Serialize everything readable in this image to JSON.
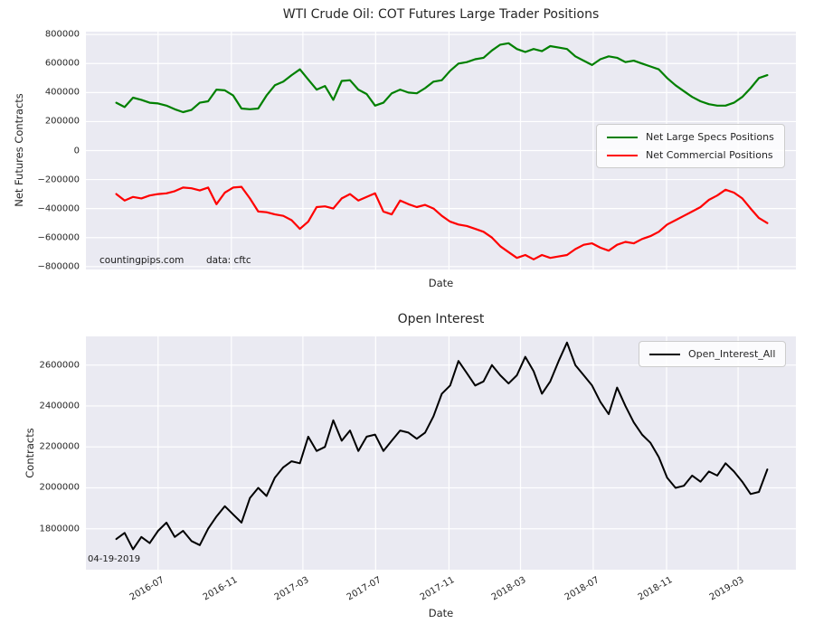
{
  "figure": {
    "top_chart": {
      "title": "WTI Crude Oil: COT Futures Large Trader Positions",
      "ylabel": "Net Futures Contracts",
      "xlabel": "Date",
      "watermark": "countingpips.com",
      "source_note": "data: cftc"
    },
    "bottom_chart": {
      "title": "Open Interest",
      "ylabel": "Contracts",
      "xlabel": "Date",
      "annotation": "04-19-2019"
    }
  },
  "colors": {
    "figure_background": "#ffffff",
    "axes_background": "#eaeaf2",
    "grid": "#ffffff",
    "text": "#262626",
    "specs_line": "#008000",
    "commercial_line": "#ff0000",
    "open_interest_line": "#000000"
  },
  "chart_data": [
    {
      "type": "line",
      "title": "WTI Crude Oil: COT Futures Large Trader Positions",
      "xlabel": "Date",
      "ylabel": "Net Futures Contracts",
      "legend_position": "center right",
      "grid": true,
      "x_domain": [
        "2016-03-02",
        "2019-06-06"
      ],
      "ylim": [
        -820000,
        820000
      ],
      "yticks": [
        {
          "value": 800000,
          "label": "800000"
        },
        {
          "value": 600000,
          "label": "600000"
        },
        {
          "value": 400000,
          "label": "400000"
        },
        {
          "value": 200000,
          "label": "200000"
        },
        {
          "value": 0,
          "label": "0"
        },
        {
          "value": -200000,
          "label": "−200000"
        },
        {
          "value": -400000,
          "label": "−400000"
        },
        {
          "value": -600000,
          "label": "−600000"
        },
        {
          "value": -800000,
          "label": "−800000"
        }
      ],
      "xticks": [
        {
          "date": "2016-07-01",
          "label": "2016-07"
        },
        {
          "date": "2016-11-01",
          "label": "2016-11"
        },
        {
          "date": "2017-03-01",
          "label": "2017-03"
        },
        {
          "date": "2017-07-01",
          "label": "2017-07"
        },
        {
          "date": "2017-11-01",
          "label": "2017-11"
        },
        {
          "date": "2018-03-01",
          "label": "2018-03"
        },
        {
          "date": "2018-07-01",
          "label": "2018-07"
        },
        {
          "date": "2018-11-01",
          "label": "2018-11"
        },
        {
          "date": "2019-03-01",
          "label": "2019-03"
        }
      ],
      "xtick_labels": false,
      "dates": [
        "2016-04-22",
        "2016-05-06",
        "2016-05-20",
        "2016-06-03",
        "2016-06-17",
        "2016-07-01",
        "2016-07-15",
        "2016-07-29",
        "2016-08-12",
        "2016-08-26",
        "2016-09-09",
        "2016-09-23",
        "2016-10-07",
        "2016-10-21",
        "2016-11-04",
        "2016-11-18",
        "2016-12-02",
        "2016-12-16",
        "2016-12-30",
        "2017-01-13",
        "2017-01-27",
        "2017-02-10",
        "2017-02-24",
        "2017-03-10",
        "2017-03-24",
        "2017-04-07",
        "2017-04-21",
        "2017-05-05",
        "2017-05-19",
        "2017-06-02",
        "2017-06-16",
        "2017-06-30",
        "2017-07-14",
        "2017-07-28",
        "2017-08-11",
        "2017-08-25",
        "2017-09-08",
        "2017-09-22",
        "2017-10-06",
        "2017-10-20",
        "2017-11-03",
        "2017-11-17",
        "2017-12-01",
        "2017-12-15",
        "2017-12-29",
        "2018-01-12",
        "2018-01-26",
        "2018-02-09",
        "2018-02-23",
        "2018-03-09",
        "2018-03-23",
        "2018-04-06",
        "2018-04-20",
        "2018-05-04",
        "2018-05-18",
        "2018-06-01",
        "2018-06-15",
        "2018-06-29",
        "2018-07-13",
        "2018-07-27",
        "2018-08-10",
        "2018-08-24",
        "2018-09-07",
        "2018-09-21",
        "2018-10-05",
        "2018-10-19",
        "2018-11-02",
        "2018-11-16",
        "2018-11-30",
        "2018-12-14",
        "2018-12-28",
        "2019-01-11",
        "2019-01-25",
        "2019-02-08",
        "2019-02-22",
        "2019-03-08",
        "2019-03-22",
        "2019-04-05",
        "2019-04-19"
      ],
      "series": [
        {
          "name": "Net Large Specs Positions",
          "color": "#008000",
          "line_width": 2.2,
          "values": [
            330000,
            300000,
            365000,
            350000,
            330000,
            325000,
            310000,
            285000,
            265000,
            280000,
            330000,
            340000,
            420000,
            415000,
            380000,
            290000,
            285000,
            290000,
            380000,
            450000,
            475000,
            520000,
            560000,
            490000,
            420000,
            445000,
            350000,
            480000,
            485000,
            420000,
            390000,
            310000,
            330000,
            395000,
            420000,
            400000,
            395000,
            430000,
            475000,
            485000,
            550000,
            600000,
            610000,
            630000,
            640000,
            690000,
            730000,
            740000,
            700000,
            680000,
            700000,
            685000,
            720000,
            710000,
            700000,
            650000,
            620000,
            590000,
            630000,
            650000,
            640000,
            610000,
            620000,
            600000,
            580000,
            560000,
            500000,
            450000,
            410000,
            370000,
            340000,
            320000,
            310000,
            310000,
            330000,
            370000,
            430000,
            500000,
            520000
          ]
        },
        {
          "name": "Net Commercial Positions",
          "color": "#ff0000",
          "line_width": 2.2,
          "values": [
            -300000,
            -345000,
            -320000,
            -330000,
            -310000,
            -300000,
            -295000,
            -280000,
            -255000,
            -260000,
            -275000,
            -255000,
            -370000,
            -290000,
            -255000,
            -250000,
            -330000,
            -420000,
            -425000,
            -440000,
            -450000,
            -480000,
            -540000,
            -490000,
            -390000,
            -385000,
            -400000,
            -330000,
            -300000,
            -345000,
            -320000,
            -295000,
            -420000,
            -440000,
            -345000,
            -370000,
            -390000,
            -375000,
            -400000,
            -450000,
            -490000,
            -510000,
            -520000,
            -540000,
            -560000,
            -600000,
            -660000,
            -700000,
            -740000,
            -720000,
            -750000,
            -720000,
            -740000,
            -730000,
            -720000,
            -680000,
            -650000,
            -640000,
            -670000,
            -690000,
            -650000,
            -630000,
            -640000,
            -610000,
            -590000,
            -560000,
            -510000,
            -480000,
            -450000,
            -420000,
            -390000,
            -340000,
            -310000,
            -270000,
            -290000,
            -330000,
            -400000,
            -465000,
            -500000
          ]
        }
      ]
    },
    {
      "type": "line",
      "title": "Open Interest",
      "xlabel": "Date",
      "ylabel": "Contracts",
      "legend_position": "upper right",
      "grid": true,
      "annotation": "04-19-2019",
      "x_domain": [
        "2016-03-02",
        "2019-06-06"
      ],
      "ylim": [
        1600000,
        2740000
      ],
      "yticks": [
        {
          "value": 2600000,
          "label": "2600000"
        },
        {
          "value": 2400000,
          "label": "2400000"
        },
        {
          "value": 2200000,
          "label": "2200000"
        },
        {
          "value": 2000000,
          "label": "2000000"
        },
        {
          "value": 1800000,
          "label": "1800000"
        }
      ],
      "xticks": [
        {
          "date": "2016-07-01",
          "label": "2016-07"
        },
        {
          "date": "2016-11-01",
          "label": "2016-11"
        },
        {
          "date": "2017-03-01",
          "label": "2017-03"
        },
        {
          "date": "2017-07-01",
          "label": "2017-07"
        },
        {
          "date": "2017-11-01",
          "label": "2017-11"
        },
        {
          "date": "2018-03-01",
          "label": "2018-03"
        },
        {
          "date": "2018-07-01",
          "label": "2018-07"
        },
        {
          "date": "2018-11-01",
          "label": "2018-11"
        },
        {
          "date": "2019-03-01",
          "label": "2019-03"
        }
      ],
      "xtick_labels": true,
      "dates": [
        "2016-04-22",
        "2016-05-06",
        "2016-05-20",
        "2016-06-03",
        "2016-06-17",
        "2016-07-01",
        "2016-07-15",
        "2016-07-29",
        "2016-08-12",
        "2016-08-26",
        "2016-09-09",
        "2016-09-23",
        "2016-10-07",
        "2016-10-21",
        "2016-11-04",
        "2016-11-18",
        "2016-12-02",
        "2016-12-16",
        "2016-12-30",
        "2017-01-13",
        "2017-01-27",
        "2017-02-10",
        "2017-02-24",
        "2017-03-10",
        "2017-03-24",
        "2017-04-07",
        "2017-04-21",
        "2017-05-05",
        "2017-05-19",
        "2017-06-02",
        "2017-06-16",
        "2017-06-30",
        "2017-07-14",
        "2017-07-28",
        "2017-08-11",
        "2017-08-25",
        "2017-09-08",
        "2017-09-22",
        "2017-10-06",
        "2017-10-20",
        "2017-11-03",
        "2017-11-17",
        "2017-12-01",
        "2017-12-15",
        "2017-12-29",
        "2018-01-12",
        "2018-01-26",
        "2018-02-09",
        "2018-02-23",
        "2018-03-09",
        "2018-03-23",
        "2018-04-06",
        "2018-04-20",
        "2018-05-04",
        "2018-05-18",
        "2018-06-01",
        "2018-06-15",
        "2018-06-29",
        "2018-07-13",
        "2018-07-27",
        "2018-08-10",
        "2018-08-24",
        "2018-09-07",
        "2018-09-21",
        "2018-10-05",
        "2018-10-19",
        "2018-11-02",
        "2018-11-16",
        "2018-11-30",
        "2018-12-14",
        "2018-12-28",
        "2019-01-11",
        "2019-01-25",
        "2019-02-08",
        "2019-02-22",
        "2019-03-08",
        "2019-03-22",
        "2019-04-05",
        "2019-04-19"
      ],
      "series": [
        {
          "name": "Open_Interest_All",
          "color": "#000000",
          "line_width": 2,
          "values": [
            1750000,
            1780000,
            1700000,
            1760000,
            1730000,
            1790000,
            1830000,
            1760000,
            1790000,
            1740000,
            1720000,
            1800000,
            1860000,
            1910000,
            1870000,
            1830000,
            1950000,
            2000000,
            1960000,
            2050000,
            2100000,
            2130000,
            2120000,
            2250000,
            2180000,
            2200000,
            2330000,
            2230000,
            2280000,
            2180000,
            2250000,
            2260000,
            2180000,
            2230000,
            2280000,
            2270000,
            2240000,
            2270000,
            2350000,
            2460000,
            2500000,
            2620000,
            2560000,
            2500000,
            2520000,
            2600000,
            2550000,
            2510000,
            2550000,
            2640000,
            2570000,
            2460000,
            2520000,
            2620000,
            2710000,
            2600000,
            2550000,
            2500000,
            2420000,
            2360000,
            2490000,
            2400000,
            2320000,
            2260000,
            2220000,
            2150000,
            2050000,
            2000000,
            2010000,
            2060000,
            2030000,
            2080000,
            2060000,
            2120000,
            2080000,
            2030000,
            1970000,
            1980000,
            2090000
          ]
        }
      ]
    }
  ]
}
